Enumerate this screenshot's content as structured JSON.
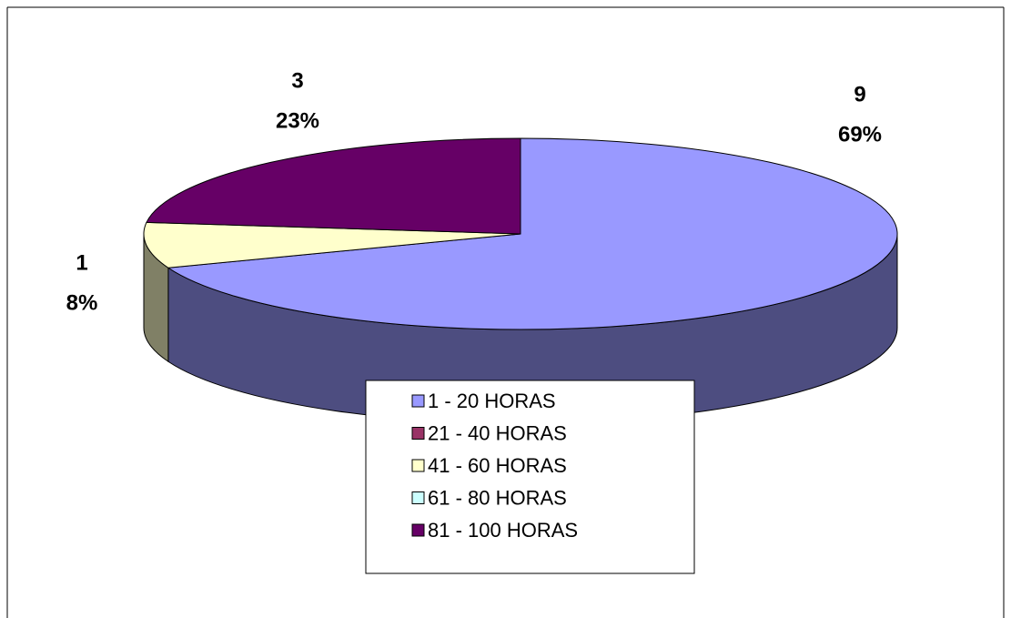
{
  "chart_data": {
    "type": "pie3d",
    "categories": [
      "1 - 20 HORAS",
      "21 - 40 HORAS",
      "41 - 60 HORAS",
      "61 - 80 HORAS",
      "81 - 100 HORAS"
    ],
    "values": [
      9,
      0,
      1,
      0,
      3
    ],
    "percent_labels": [
      "69%",
      null,
      "8%",
      null,
      "23%"
    ],
    "colors": [
      "#9999ff",
      "#993366",
      "#ffffcc",
      "#ccffff",
      "#660066"
    ],
    "legend": "bottom"
  }
}
